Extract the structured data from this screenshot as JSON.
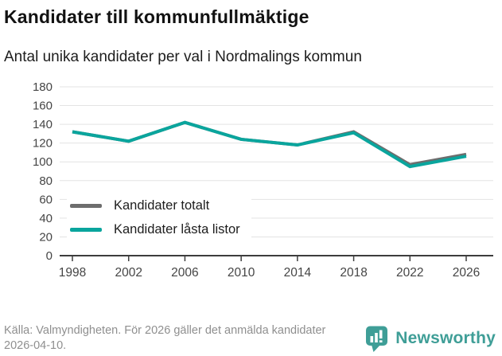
{
  "header": {
    "title": "Kandidater till kommunfullmäktige",
    "subtitle": "Antal unika kandidater per val i Nordmalings kommun"
  },
  "chart_data": {
    "type": "line",
    "title": "Kandidater till kommunfullmäktige",
    "subtitle": "Antal unika kandidater per val i Nordmalings kommun",
    "categories": [
      "1998",
      "2002",
      "2006",
      "2010",
      "2014",
      "2018",
      "2022",
      "2026"
    ],
    "series": [
      {
        "name": "Kandidater totalt",
        "color": "#6d6d6d",
        "values": [
          132,
          122,
          142,
          124,
          118,
          132,
          97,
          108
        ]
      },
      {
        "name": "Kandidater låsta listor",
        "color": "#0aa59d",
        "values": [
          132,
          122,
          142,
          124,
          118,
          131,
          95,
          106
        ]
      }
    ],
    "xlabel": "",
    "ylabel": "",
    "ylim": [
      0,
      180
    ],
    "yticks": [
      0,
      20,
      40,
      60,
      80,
      100,
      120,
      140,
      160,
      180
    ],
    "grid": true,
    "legend_position": "inside-bottom-left"
  },
  "footer": {
    "source": "Källa: Valmyndigheten. För 2026 gäller det anmälda kandidater 2026-04-10.",
    "brand": "Newsworthy"
  },
  "colors": {
    "teal_line": "#0aa59d",
    "gray_line": "#6d6d6d",
    "gridline": "#e3e3e3",
    "axis": "#3d3d3d",
    "brand_teal": "#3f9e97",
    "source_text": "#8f8f8f"
  }
}
